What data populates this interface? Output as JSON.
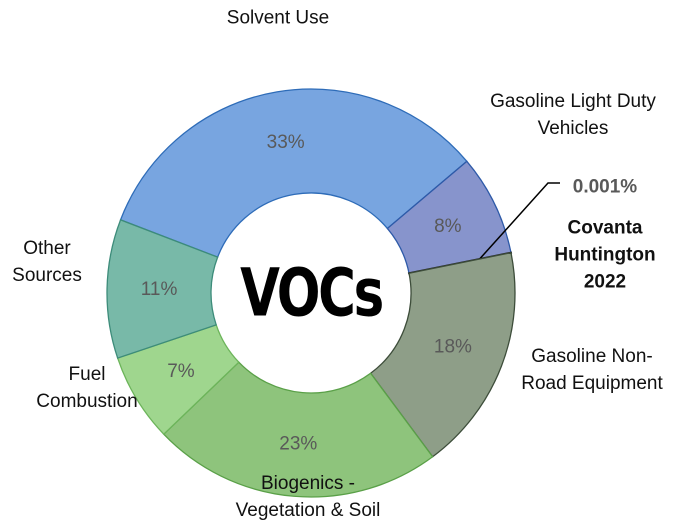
{
  "chart_data": {
    "type": "pie",
    "donut": true,
    "title": "VOCs",
    "categories": [
      "Solvent Use",
      "Gasoline Light Duty Vehicles",
      "Covanta Huntington 2022",
      "Gasoline Non-Road Equipment",
      "Biogenics - Vegetation & Soil",
      "Fuel Combustion",
      "Other Sources"
    ],
    "values": [
      33,
      8,
      0.001,
      18,
      23,
      7,
      11
    ],
    "value_labels": [
      "33%",
      "8%",
      "0.001%",
      "18%",
      "23%",
      "7%",
      "11%"
    ],
    "colors": [
      "#78a5e0",
      "#8794cc",
      "#333333",
      "#8e9e88",
      "#8ec47c",
      "#9fd68e",
      "#78b9a8"
    ]
  }
}
